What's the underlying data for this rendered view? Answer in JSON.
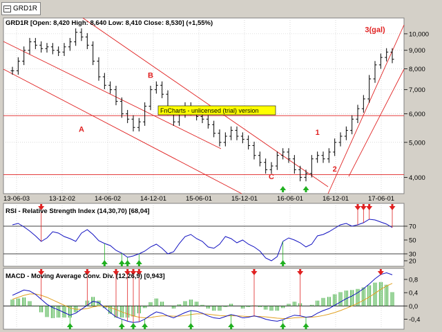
{
  "tab": {
    "label": "GRD1R"
  },
  "chart_data": [
    {
      "type": "candlestick",
      "header": "GRD1R [Open: 8,420  High: 8,640  Low: 8,410  Close: 8,530] (+1,55%)",
      "ylim": [
        3.8,
        10.4
      ],
      "yscale": "log",
      "yticks": [
        4,
        5,
        6,
        7,
        8,
        9,
        10
      ],
      "ytick_labels": [
        "4,000",
        "5,000",
        "6,000",
        "7,000",
        "8,000",
        "9,000",
        "10,000"
      ],
      "xtick_labels": [
        "13-06-03",
        "13-12-02",
        "14-06-02",
        "14-12-01",
        "15-06-01",
        "15-12-01",
        "16-06-01",
        "16-12-01",
        "17-06-01"
      ],
      "close_series": [
        7.9,
        8.4,
        9.0,
        9.5,
        9.3,
        9.1,
        9.2,
        9.0,
        8.9,
        9.2,
        9.5,
        10.1,
        9.8,
        9.3,
        8.4,
        7.6,
        7.2,
        7.0,
        6.5,
        6.0,
        5.8,
        5.5,
        5.7,
        6.3,
        7.0,
        7.2,
        6.8,
        6.1,
        5.7,
        6.0,
        6.3,
        6.1,
        5.9,
        5.8,
        5.6,
        5.3,
        5.0,
        5.2,
        5.4,
        5.2,
        5.1,
        4.9,
        4.6,
        4.4,
        4.2,
        4.3,
        4.6,
        4.7,
        4.5,
        4.2,
        4.0,
        4.1,
        4.5,
        4.6,
        4.5,
        4.7,
        5.0,
        5.2,
        5.4,
        5.8,
        6.2,
        6.6,
        7.5,
        8.2,
        8.6,
        8.9,
        8.5
      ],
      "wave_labels": [
        {
          "text": "A",
          "x": 12,
          "price": 5.35
        },
        {
          "text": "B",
          "x": 24,
          "price": 7.55
        },
        {
          "text": "C",
          "x": 45,
          "price": 3.95
        },
        {
          "text": "1",
          "x": 53,
          "price": 5.25
        },
        {
          "text": "2",
          "x": 56,
          "price": 4.15
        },
        {
          "text": "3(gal)",
          "x": 63,
          "price": 10.1
        }
      ],
      "hlines": [
        5.93,
        4.07
      ],
      "banner": "FnCharts - unlicensed (trial) version",
      "arrows_up": [
        47,
        51
      ],
      "colors": {
        "price": "#000000",
        "trend": "#e02020",
        "banner_bg": "#ffff00"
      }
    },
    {
      "type": "line",
      "title": "RSI - Relative Strength Index (14,30,70) [68,04]",
      "ylim": [
        15,
        85
      ],
      "yticks": [
        20,
        30,
        50,
        70
      ],
      "ytick_labels": [
        "20",
        "30",
        "50",
        "70"
      ],
      "levels": [
        70,
        30
      ],
      "values": [
        72,
        74,
        69,
        63,
        56,
        48,
        53,
        62,
        60,
        55,
        52,
        48,
        60,
        65,
        58,
        49,
        45,
        42,
        35,
        31,
        25,
        27,
        30,
        34,
        40,
        44,
        38,
        30,
        33,
        45,
        55,
        58,
        52,
        48,
        40,
        38,
        44,
        55,
        52,
        46,
        50,
        44,
        40,
        34,
        24,
        20,
        26,
        48,
        53,
        50,
        46,
        40,
        44,
        56,
        58,
        62,
        67,
        72,
        74,
        70,
        72,
        75,
        80,
        79,
        76,
        73,
        68
      ],
      "color": "#1010c0"
    },
    {
      "type": "line",
      "title": "MACD - Moving Average Conv. Div. (12,26,9) [0,943]",
      "ylim": [
        -0.62,
        1.05
      ],
      "yticks": [
        -0.4,
        0.0,
        0.4,
        0.8
      ],
      "ytick_labels": [
        "-0,4",
        "0,0",
        "0,4",
        "0,8"
      ],
      "macd": [
        0.32,
        0.4,
        0.48,
        0.45,
        0.35,
        0.2,
        0.05,
        -0.05,
        -0.12,
        -0.2,
        -0.28,
        -0.22,
        -0.1,
        0.02,
        0.14,
        0.1,
        -0.05,
        -0.2,
        -0.33,
        -0.4,
        -0.46,
        -0.5,
        -0.48,
        -0.4,
        -0.28,
        -0.18,
        -0.22,
        -0.3,
        -0.36,
        -0.28,
        -0.2,
        -0.14,
        -0.16,
        -0.22,
        -0.3,
        -0.36,
        -0.38,
        -0.32,
        -0.26,
        -0.3,
        -0.36,
        -0.34,
        -0.3,
        -0.34,
        -0.4,
        -0.44,
        -0.46,
        -0.42,
        -0.34,
        -0.28,
        -0.3,
        -0.34,
        -0.32,
        -0.22,
        -0.14,
        -0.08,
        0.02,
        0.12,
        0.22,
        0.3,
        0.4,
        0.52,
        0.66,
        0.82,
        0.95,
        1.0,
        0.94
      ],
      "signal": [
        0.2,
        0.26,
        0.32,
        0.36,
        0.36,
        0.32,
        0.26,
        0.18,
        0.1,
        0.02,
        -0.06,
        -0.1,
        -0.1,
        -0.08,
        -0.03,
        0.0,
        -0.01,
        -0.05,
        -0.11,
        -0.18,
        -0.24,
        -0.3,
        -0.34,
        -0.36,
        -0.35,
        -0.32,
        -0.3,
        -0.3,
        -0.31,
        -0.31,
        -0.29,
        -0.26,
        -0.24,
        -0.24,
        -0.25,
        -0.27,
        -0.29,
        -0.3,
        -0.3,
        -0.3,
        -0.31,
        -0.32,
        -0.31,
        -0.32,
        -0.33,
        -0.35,
        -0.37,
        -0.38,
        -0.38,
        -0.36,
        -0.35,
        -0.34,
        -0.34,
        -0.32,
        -0.29,
        -0.25,
        -0.2,
        -0.14,
        -0.07,
        0.0,
        0.08,
        0.17,
        0.27,
        0.38,
        0.5,
        0.6,
        0.68
      ],
      "colors": {
        "macd": "#1010c0",
        "signal": "#e0a020",
        "hist": "#20a020"
      }
    }
  ],
  "signals": {
    "rsi_down": [
      5,
      60,
      61,
      62,
      66
    ],
    "rsi_up": [
      16,
      19,
      20,
      22,
      47
    ],
    "macd_down": [
      5,
      13,
      18,
      20,
      21,
      22,
      42,
      50,
      64
    ],
    "macd_up": [
      10,
      19,
      21,
      23,
      31,
      38,
      47,
      51
    ]
  },
  "colors": {
    "signal_down": "#e02020",
    "signal_up": "#20b020",
    "grid": "#c0c0c0"
  }
}
